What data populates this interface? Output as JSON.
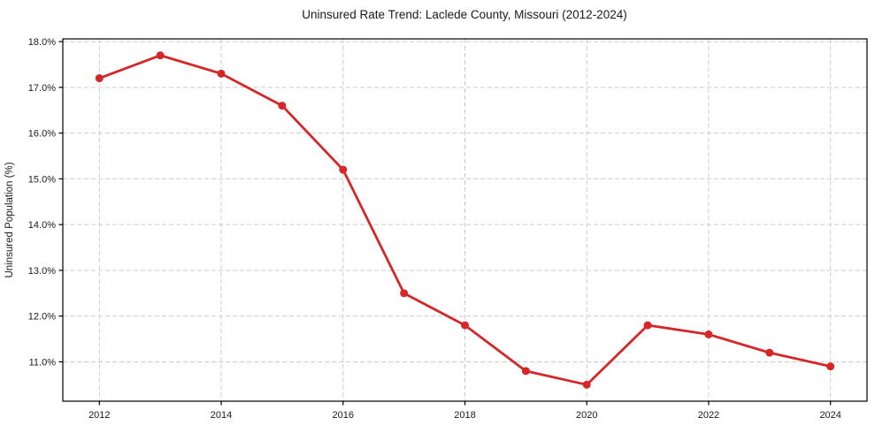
{
  "chart_data": {
    "type": "line",
    "title": "Uninsured Rate Trend: Laclede County, Missouri (2012-2024)",
    "xlabel": "",
    "ylabel": "Uninsured Population (%)",
    "x": [
      2012,
      2013,
      2014,
      2015,
      2016,
      2017,
      2018,
      2019,
      2020,
      2021,
      2022,
      2023,
      2024
    ],
    "values": [
      17.2,
      17.7,
      17.3,
      16.6,
      15.2,
      12.5,
      11.8,
      10.8,
      10.5,
      11.8,
      11.6,
      11.2,
      10.9
    ],
    "xticks": [
      2012,
      2014,
      2016,
      2018,
      2020,
      2022,
      2024
    ],
    "yticks": [
      11,
      12,
      13,
      14,
      15,
      16,
      17,
      18
    ],
    "ytick_suffix": "%",
    "ytick_decimals": 1,
    "xlim": [
      2011.4,
      2024.6
    ],
    "ylim": [
      10.14,
      18.06
    ],
    "grid": true,
    "legend_position": "none",
    "line_color": "#d62728",
    "marker": "circle",
    "grid_color": "#cccccc",
    "frame_color": "#000000",
    "background": "#ffffff"
  }
}
